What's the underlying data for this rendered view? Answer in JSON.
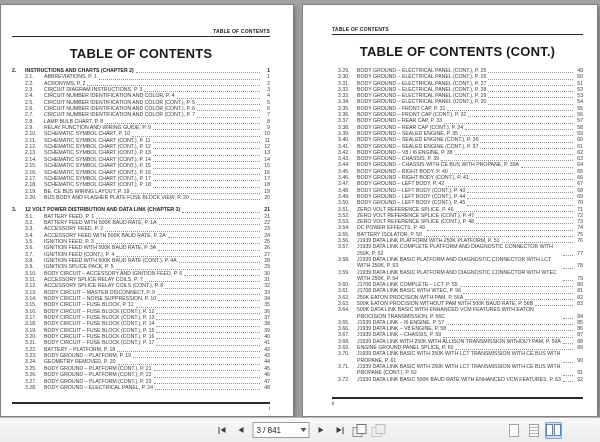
{
  "left_page": {
    "header": "TABLE OF CONTENTS",
    "title": "TABLE OF CONTENTS",
    "footer_page_number": "i",
    "rows": [
      {
        "kind": "chapter",
        "num": "2.",
        "title": "INSTRUCTIONS AND CHARTS (CHAPTER 2)",
        "page": "1"
      },
      {
        "num": "2.1.",
        "title": "ABBREVIATIONS, P. 1",
        "page": "1"
      },
      {
        "num": "2.2.",
        "title": "ACRONYMS, P. 2",
        "page": "2"
      },
      {
        "num": "2.3.",
        "title": "CIRCUIT DIAGRAM INSTRUCTIONS, P. 3",
        "page": "3"
      },
      {
        "num": "2.4.",
        "title": "CIRCUIT NUMBER IDENTIFICATION AND COLOR, P. 4",
        "page": "4"
      },
      {
        "num": "2.5.",
        "title": "CIRCUIT NUMBER IDENTIFICATION AND COLOR (CONT.), P. 5",
        "page": "5"
      },
      {
        "num": "2.6.",
        "title": "CIRCUIT NUMBER IDENTIFICATION AND COLOR (CONT.), P. 6",
        "page": "6"
      },
      {
        "num": "2.7.",
        "title": "CIRCUIT NUMBER IDENTIFICATION AND COLOR (CONT.), P. 7",
        "page": "7"
      },
      {
        "num": "2.8.",
        "title": "LAMP BULB CHART, P. 8",
        "page": "8"
      },
      {
        "num": "2.9.",
        "title": "RELAY FUNCTION AND WIRING GUIDE, P. 9",
        "page": "9"
      },
      {
        "num": "2.10.",
        "title": "SCHEMATIC SYMBOL CHART, P. 10",
        "page": "10"
      },
      {
        "num": "2.11.",
        "title": "SCHEMATIC SYMBOL CHART (CONT.), P. 11",
        "page": "11"
      },
      {
        "num": "2.12.",
        "title": "SCHEMATIC SYMBOL CHART (CONT.), P. 12",
        "page": "12"
      },
      {
        "num": "2.13.",
        "title": "SCHEMATIC SYMBOL CHART (CONT.), P. 13",
        "page": "13"
      },
      {
        "num": "2.14.",
        "title": "SCHEMATIC SYMBOL CHART (CONT.), P. 14",
        "page": "14"
      },
      {
        "num": "2.15.",
        "title": "SCHEMATIC SYMBOL CHART (CONT.), P. 15",
        "page": "15"
      },
      {
        "num": "2.16.",
        "title": "SCHEMATIC SYMBOL CHART (CONT.), P. 16",
        "page": "16"
      },
      {
        "num": "2.17.",
        "title": "SCHEMATIC SYMBOL CHART (CONT.), P. 17",
        "page": "17"
      },
      {
        "num": "2.18.",
        "title": "SCHEMATIC SYMBOL CHART (CONT.), P. 18",
        "page": "18"
      },
      {
        "num": "2.19.",
        "title": "BE, CE BUS WIRING LAYOUT, P. 19",
        "page": "19"
      },
      {
        "num": "2.20.",
        "title": "BUS BODY AND FLASHER PLATE FUSE BLOCK VIEW, P. 20",
        "page": "20"
      },
      {
        "kind": "chapter",
        "num": "3.",
        "title": "12 VOLT POWER DISTRIBUTION AND DATA LINK (CHAPTER 3)",
        "page": "21"
      },
      {
        "num": "3.1.",
        "title": "BATTERY FEED, P. 1",
        "page": "21"
      },
      {
        "num": "3.2.",
        "title": "BATTERY FEED WITH 500K BAUD RATE, P. 1A",
        "page": "22"
      },
      {
        "num": "3.3.",
        "title": "ACCESSORY FEED, P. 2",
        "page": "23"
      },
      {
        "num": "3.4.",
        "title": "ACCESSORY FEED WITH 500K BAUD RATE, P. 2A",
        "page": "24"
      },
      {
        "num": "3.5.",
        "title": "IGNITION FEED, P. 3",
        "page": "25"
      },
      {
        "num": "3.6.",
        "title": "IGNITION FEED WITH 500K BAUD RATE, P. 3A",
        "page": "26"
      },
      {
        "num": "3.7.",
        "title": "IGNITION FEED (CONT.), P. 4",
        "page": "27"
      },
      {
        "num": "3.8.",
        "title": "IGNITION FEED WITH 500K BAUD RATE (CONT.), P. 4A",
        "page": "28"
      },
      {
        "num": "3.9.",
        "title": "IGNITION SPLICE PACK, P. 5",
        "page": "29"
      },
      {
        "num": "3.10.",
        "title": "BODY CIRCUIT – ACCESSORY AND IGNITION FEED, P. 6",
        "page": "30"
      },
      {
        "num": "3.11.",
        "title": "ACCESSORY SPLICE RELAY COILS, P. 7",
        "page": "31"
      },
      {
        "num": "3.12.",
        "title": "ACCESSORY SPLICE RELAY COILS (CONT.), P. 8",
        "page": "32"
      },
      {
        "num": "3.13.",
        "title": "BODY CIRCUIT – MASTER DISCONNECT, P. 9",
        "page": "33"
      },
      {
        "num": "3.14.",
        "title": "BODY CIRCUIT – NOISE SUPPRESSION, P. 10",
        "page": "34"
      },
      {
        "num": "3.15.",
        "title": "BODY CIRCUIT – FUSE BLOCK, P. 11",
        "page": "35"
      },
      {
        "num": "3.16.",
        "title": "BODY CIRCUIT – FUSE BLOCK (CONT.), P. 12",
        "page": "36"
      },
      {
        "num": "3.17.",
        "title": "BODY CIRCUIT – FUSE BLOCK (CONT.), P. 13",
        "page": "37"
      },
      {
        "num": "3.18.",
        "title": "BODY CIRCUIT – FUSE BLOCK (CONT.), P. 14",
        "page": "38"
      },
      {
        "num": "3.19.",
        "title": "BODY CIRCUIT – FUSE BLOCK (CONT.), P. 15",
        "page": "39"
      },
      {
        "num": "3.20.",
        "title": "BODY CIRCUIT – FUSE BLOCK (CONT.), P. 16",
        "page": "40"
      },
      {
        "num": "3.21.",
        "title": "BODY CIRCUIT – FUSE BLOCK (CONT.), P. 17",
        "page": "41"
      },
      {
        "num": "3.22.",
        "title": "BATTERY – PLATFORM, P. 18",
        "page": "42"
      },
      {
        "num": "3.23.",
        "title": "BODY GROUND – PLATFORM, P. 19",
        "page": "43"
      },
      {
        "num": "3.24.",
        "title": "GEOMETRY REMOVED, P. 20",
        "page": "44"
      },
      {
        "num": "3.25.",
        "title": "BODY GROUND – PLATFORM (CONT.), P. 21",
        "page": "45"
      },
      {
        "num": "3.26.",
        "title": "BODY GROUND – PLATFORM (CONT.), P. 22",
        "page": "46"
      },
      {
        "num": "3.27.",
        "title": "BODY GROUND – PLATFORM (CONT.), P. 23",
        "page": "47"
      },
      {
        "num": "3.28.",
        "title": "BODY GROUND – ELECTRICAL PANEL, P. 24",
        "page": "48"
      }
    ]
  },
  "right_page": {
    "header": "TABLE OF CONTENTS",
    "title": "TABLE OF CONTENTS (CONT.)",
    "footer_page_number": "ii",
    "rows": [
      {
        "num": "3.29.",
        "title": "BODY GROUND – ELECTRICAL PANEL (CONT.), P. 25",
        "page": "49"
      },
      {
        "num": "3.30.",
        "title": "BODY GROUND – ELECTRICAL PANEL (CONT.), P. 26",
        "page": "50"
      },
      {
        "num": "3.31.",
        "title": "BODY GROUND – ELECTRICAL PANEL (CONT.), P. 27",
        "page": "51"
      },
      {
        "num": "3.32.",
        "title": "BODY GROUND – ELECTRICAL PANEL (CONT.), P. 28",
        "page": "52"
      },
      {
        "num": "3.33.",
        "title": "BODY GROUND – ELECTRICAL PANEL (CONT.), P. 29",
        "page": "53"
      },
      {
        "num": "3.34.",
        "title": "BODY GROUND – ELECTRICAL PANEL (CONT.), P. 30",
        "page": "54"
      },
      {
        "num": "3.35.",
        "title": "BODY GROUND – FRONT CAP, P. 31",
        "page": "55"
      },
      {
        "num": "3.36.",
        "title": "BODY GROUND – FRONT CAP (CONT.), P. 32",
        "page": "56"
      },
      {
        "num": "3.37.",
        "title": "BODY GROUND – REAR CAP, P. 33",
        "page": "57"
      },
      {
        "num": "3.38.",
        "title": "BODY GROUND – REAR CAP (CONT.), P. 34",
        "page": "58"
      },
      {
        "num": "3.39.",
        "title": "BODY GROUND – SEALED ENGINE, P. 35",
        "page": "59"
      },
      {
        "num": "3.40.",
        "title": "BODY GROUND – SEALED ENGINE (CONT.), P. 36",
        "page": "60"
      },
      {
        "num": "3.41.",
        "title": "BODY GROUND – SEALED ENGINE (CONT.), P. 37",
        "page": "61"
      },
      {
        "num": "3.42.",
        "title": "BODY GROUND – V8 / I6 ENGINE, P. 38",
        "page": "62"
      },
      {
        "num": "3.43.",
        "title": "BODY GROUND – CHASSIS, P. 39",
        "page": "63"
      },
      {
        "num": "3.44.",
        "title": "BODY GROUND – CHASSIS WITH CE BUS WITH PROPANE, P. 39A",
        "page": "64"
      },
      {
        "num": "3.45.",
        "title": "BODY GROUND – RIGHT BODY, P. 40",
        "page": "65"
      },
      {
        "num": "3.46.",
        "title": "BODY GROUND – RIGHT BODY (CONT.), P. 41",
        "page": "66"
      },
      {
        "num": "3.47.",
        "title": "BODY GROUND – LEFT BODY, P. 42",
        "page": "67"
      },
      {
        "num": "3.48.",
        "title": "BODY GROUND – LEFT BODY (CONT.), P. 43",
        "page": "68"
      },
      {
        "num": "3.49.",
        "title": "BODY GROUND – LEFT BODY (CONT.), P. 44",
        "page": "69"
      },
      {
        "num": "3.50.",
        "title": "BODY GROUND – LEFT BODY (CONT.), P. 45",
        "page": "70"
      },
      {
        "num": "3.51.",
        "title": "ZERO VOLT REFERENCE SPLICE, P. 46",
        "page": "71"
      },
      {
        "num": "3.52.",
        "title": "ZERO VOLT REFERENCE SPLICE (CONT.), P. 47",
        "page": "72"
      },
      {
        "num": "3.53.",
        "title": "ZERO VOLT REFERENCE SPLICE (CONT.), P. 48",
        "page": "73"
      },
      {
        "num": "3.54.",
        "title": "DC POWER EFFECTS, P. 49",
        "page": "74"
      },
      {
        "num": "3.55.",
        "title": "BATTERY ISOLATOR, P. 50",
        "page": "75"
      },
      {
        "num": "3.56.",
        "title": "J1939 DATA LINK PLATFORM WITH 250K PLATFORM, P. 51",
        "page": "76"
      },
      {
        "num": "3.57.",
        "title": "J1939 DATA LINK COMPLETE PLATFORM AND DIAGNOSTIC CONNECTOR WITH 250K, P. 52",
        "page": "77"
      },
      {
        "num": "3.58.",
        "title": "J1939 DATA LINK BASIC PLATFORM AND DIAGNOSTIC CONNECTOR WITH LCT WITH 250K, P. 53",
        "page": "78"
      },
      {
        "num": "3.59.",
        "title": "J1939 DATA LINK BASIC PLATFORM AND DIAGNOSTIC CONNECTOR WITH WTEC WITH 250K, P. 54",
        "page": "79"
      },
      {
        "num": "3.60.",
        "title": "J1708 DATA LINK COMPLETE – LCT, P. 55",
        "page": "80"
      },
      {
        "num": "3.61.",
        "title": "J1708 DATA LINK BASIC WITH WTEC, P. 56",
        "page": "81"
      },
      {
        "num": "3.62.",
        "title": "250K EATON PROCISION WITH PAM, P. 56A",
        "page": "82"
      },
      {
        "num": "3.63.",
        "title": "500K EATON PROCISION WITHOUT PAM WITH 500K BAUD RATE, P. 56B",
        "page": "83"
      },
      {
        "num": "3.64.",
        "title": "500K DATA LINK BASIC WITH ENHANCED VCM FEATURES WITH EATON PROCISION TRANSMISSION, P. 56C",
        "page": "84"
      },
      {
        "num": "3.65.",
        "title": "J1939 DATA LINK – I6 ENGINE, P. 57",
        "page": "85"
      },
      {
        "num": "3.66.",
        "title": "J1939 DATA LINK – V8 ENGINE, P. 58",
        "page": "86"
      },
      {
        "num": "3.67.",
        "title": "J1939 DATA LINK – CHASSIS, P. 59",
        "page": "87"
      },
      {
        "num": "3.68.",
        "title": "J1939 DATA LINK WITH 250K WITH ALLISON TRANSMISSION WITHOUT PAM, P. 59A",
        "page": "88"
      },
      {
        "num": "3.69.",
        "title": "ENGINE GROUND PANEL SPLICE, P. 60",
        "page": "89"
      },
      {
        "num": "3.70.",
        "title": "J1939 DATA LINK BASIC WITH 250K WITH LCT TRANSMISSION WITH CE BUS WITH PROPANE, P. 61",
        "page": "90"
      },
      {
        "num": "3.71.",
        "title": "J1939 DATA LINK BASIC WITH 250K WITH LCT TRANSMISSION WITH CE BUS WITH PROPANE (CONT.), P. 62",
        "page": "91"
      },
      {
        "num": "3.72.",
        "title": "J1939 DATA LINK BASIC 500K BAUD RATE WITH ENHANCED VCM FEATURES, P. 63",
        "page": "92"
      }
    ]
  },
  "toolbar": {
    "page_field_value": "3 / 841",
    "icons": {
      "first_page": "bar-left-triangle",
      "previous_page": "left-triangle",
      "next_page": "right-triangle",
      "last_page": "right-triangle-bar",
      "previous_view": "overlapping-pages",
      "next_view": "overlapping-pages-disabled",
      "single_page_view": "single-page-outline",
      "continuous_view": "page-with-lines",
      "two_page_view": "two-page-spread"
    },
    "colors": {
      "active_view_bg": "#cfe0f5",
      "active_view_border": "#84a7cc",
      "toolbar_bg": "#f0f0f0",
      "viewer_bg": "#a2a2a2"
    }
  }
}
